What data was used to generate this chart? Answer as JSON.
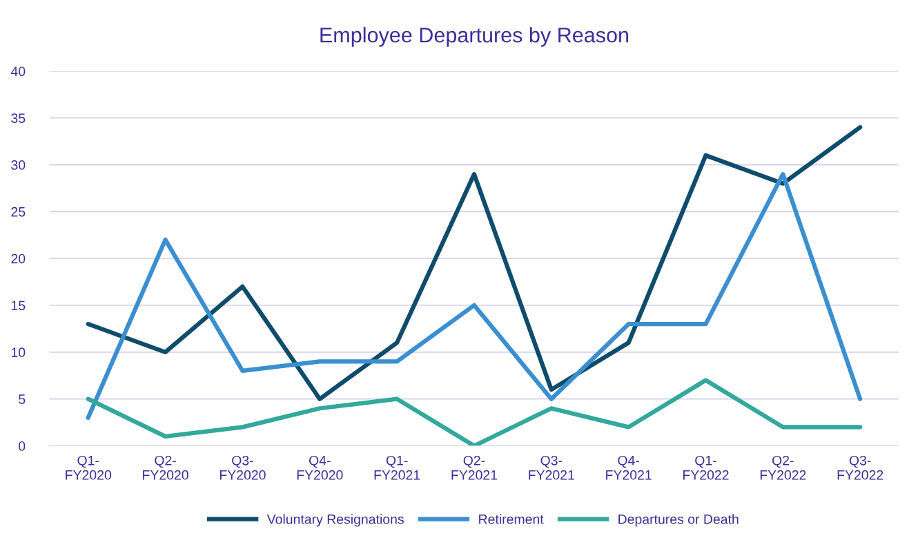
{
  "chart_data": {
    "type": "line",
    "title": "Employee Departures by Reason",
    "categories": [
      "Q1-\nFY2020",
      "Q2-\nFY2020",
      "Q3-\nFY2020",
      "Q4-\nFY2020",
      "Q1-\nFY2021",
      "Q2-\nFY2021",
      "Q3-\nFY2021",
      "Q4-\nFY2021",
      "Q1-\nFY2022",
      "Q2-\nFY2022",
      "Q3-\nFY2022"
    ],
    "series": [
      {
        "name": "Voluntary Resignations",
        "color": "#0f4c6c",
        "values": [
          13,
          10,
          17,
          5,
          11,
          29,
          6,
          11,
          31,
          28,
          34
        ]
      },
      {
        "name": "Retirement",
        "color": "#3a8fd0",
        "values": [
          3,
          22,
          8,
          9,
          9,
          15,
          5,
          13,
          13,
          29,
          5
        ]
      },
      {
        "name": "Departures or Death",
        "color": "#33a89c",
        "values": [
          5,
          1,
          2,
          4,
          5,
          0,
          4,
          2,
          7,
          2,
          2
        ]
      }
    ],
    "ylim": [
      0,
      40
    ],
    "yticks": [
      0,
      5,
      10,
      15,
      20,
      25,
      30,
      35,
      40
    ],
    "grid": "y",
    "legend": "bottom",
    "marker": "none",
    "line_style": "solid"
  }
}
